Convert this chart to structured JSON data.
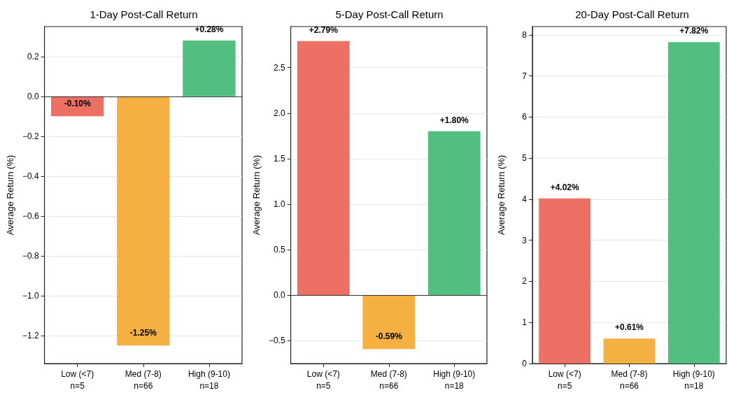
{
  "chart_data": [
    {
      "type": "bar",
      "title": "1-Day Post-Call Return",
      "ylabel": "Average Return (%)",
      "categories": [
        "Low (<7)\nn=5",
        "Med (7-8)\nn=66",
        "High (9-10)\nn=18"
      ],
      "values": [
        -0.1,
        -1.25,
        0.28
      ],
      "colors": [
        "#ec7063",
        "#f5b041",
        "#52be80"
      ],
      "value_labels": [
        "-0.10%",
        "-1.25%",
        "+0.28%"
      ],
      "ylim": [
        -1.34,
        0.35
      ],
      "yticks": [
        {
          "value": -1.2,
          "label": "−1.2"
        },
        {
          "value": -1.0,
          "label": "−1.0"
        },
        {
          "value": -0.8,
          "label": "−0.8"
        },
        {
          "value": -0.6,
          "label": "−0.6"
        },
        {
          "value": -0.4,
          "label": "−0.4"
        },
        {
          "value": -0.2,
          "label": "−0.2"
        },
        {
          "value": 0,
          "label": "0.0"
        },
        {
          "value": 0.2,
          "label": "0.2"
        }
      ],
      "grid": "y",
      "ref_lines": [
        {
          "axis": "y",
          "value": 0,
          "color": "#333333"
        }
      ]
    },
    {
      "type": "bar",
      "title": "5-Day Post-Call Return",
      "ylabel": "Average Return (%)",
      "categories": [
        "Low (<7)\nn=5",
        "Med (7-8)\nn=66",
        "High (9-10)\nn=18"
      ],
      "values": [
        2.79,
        -0.59,
        1.8
      ],
      "colors": [
        "#ec7063",
        "#f5b041",
        "#52be80"
      ],
      "value_labels": [
        "+2.79%",
        "-0.59%",
        "+1.80%"
      ],
      "ylim": [
        -0.75,
        2.95
      ],
      "yticks": [
        {
          "value": -0.5,
          "label": "−0.5"
        },
        {
          "value": 0,
          "label": "0.0"
        },
        {
          "value": 0.5,
          "label": "0.5"
        },
        {
          "value": 1.0,
          "label": "1.0"
        },
        {
          "value": 1.5,
          "label": "1.5"
        },
        {
          "value": 2.0,
          "label": "2.0"
        },
        {
          "value": 2.5,
          "label": "2.5"
        }
      ],
      "grid": "y",
      "ref_lines": [
        {
          "axis": "y",
          "value": 0,
          "color": "#333333"
        }
      ]
    },
    {
      "type": "bar",
      "title": "20-Day Post-Call Return",
      "ylabel": "Average Return (%)",
      "categories": [
        "Low (<7)\nn=5",
        "Med (7-8)\nn=66",
        "High (9-10)\nn=18"
      ],
      "values": [
        4.02,
        0.61,
        7.82
      ],
      "colors": [
        "#ec7063",
        "#f5b041",
        "#52be80"
      ],
      "value_labels": [
        "+4.02%",
        "+0.61%",
        "+7.82%"
      ],
      "ylim": [
        0,
        8.2
      ],
      "yticks": [
        0,
        1,
        2,
        3,
        4,
        5,
        6,
        7,
        8
      ],
      "grid": "y"
    }
  ]
}
